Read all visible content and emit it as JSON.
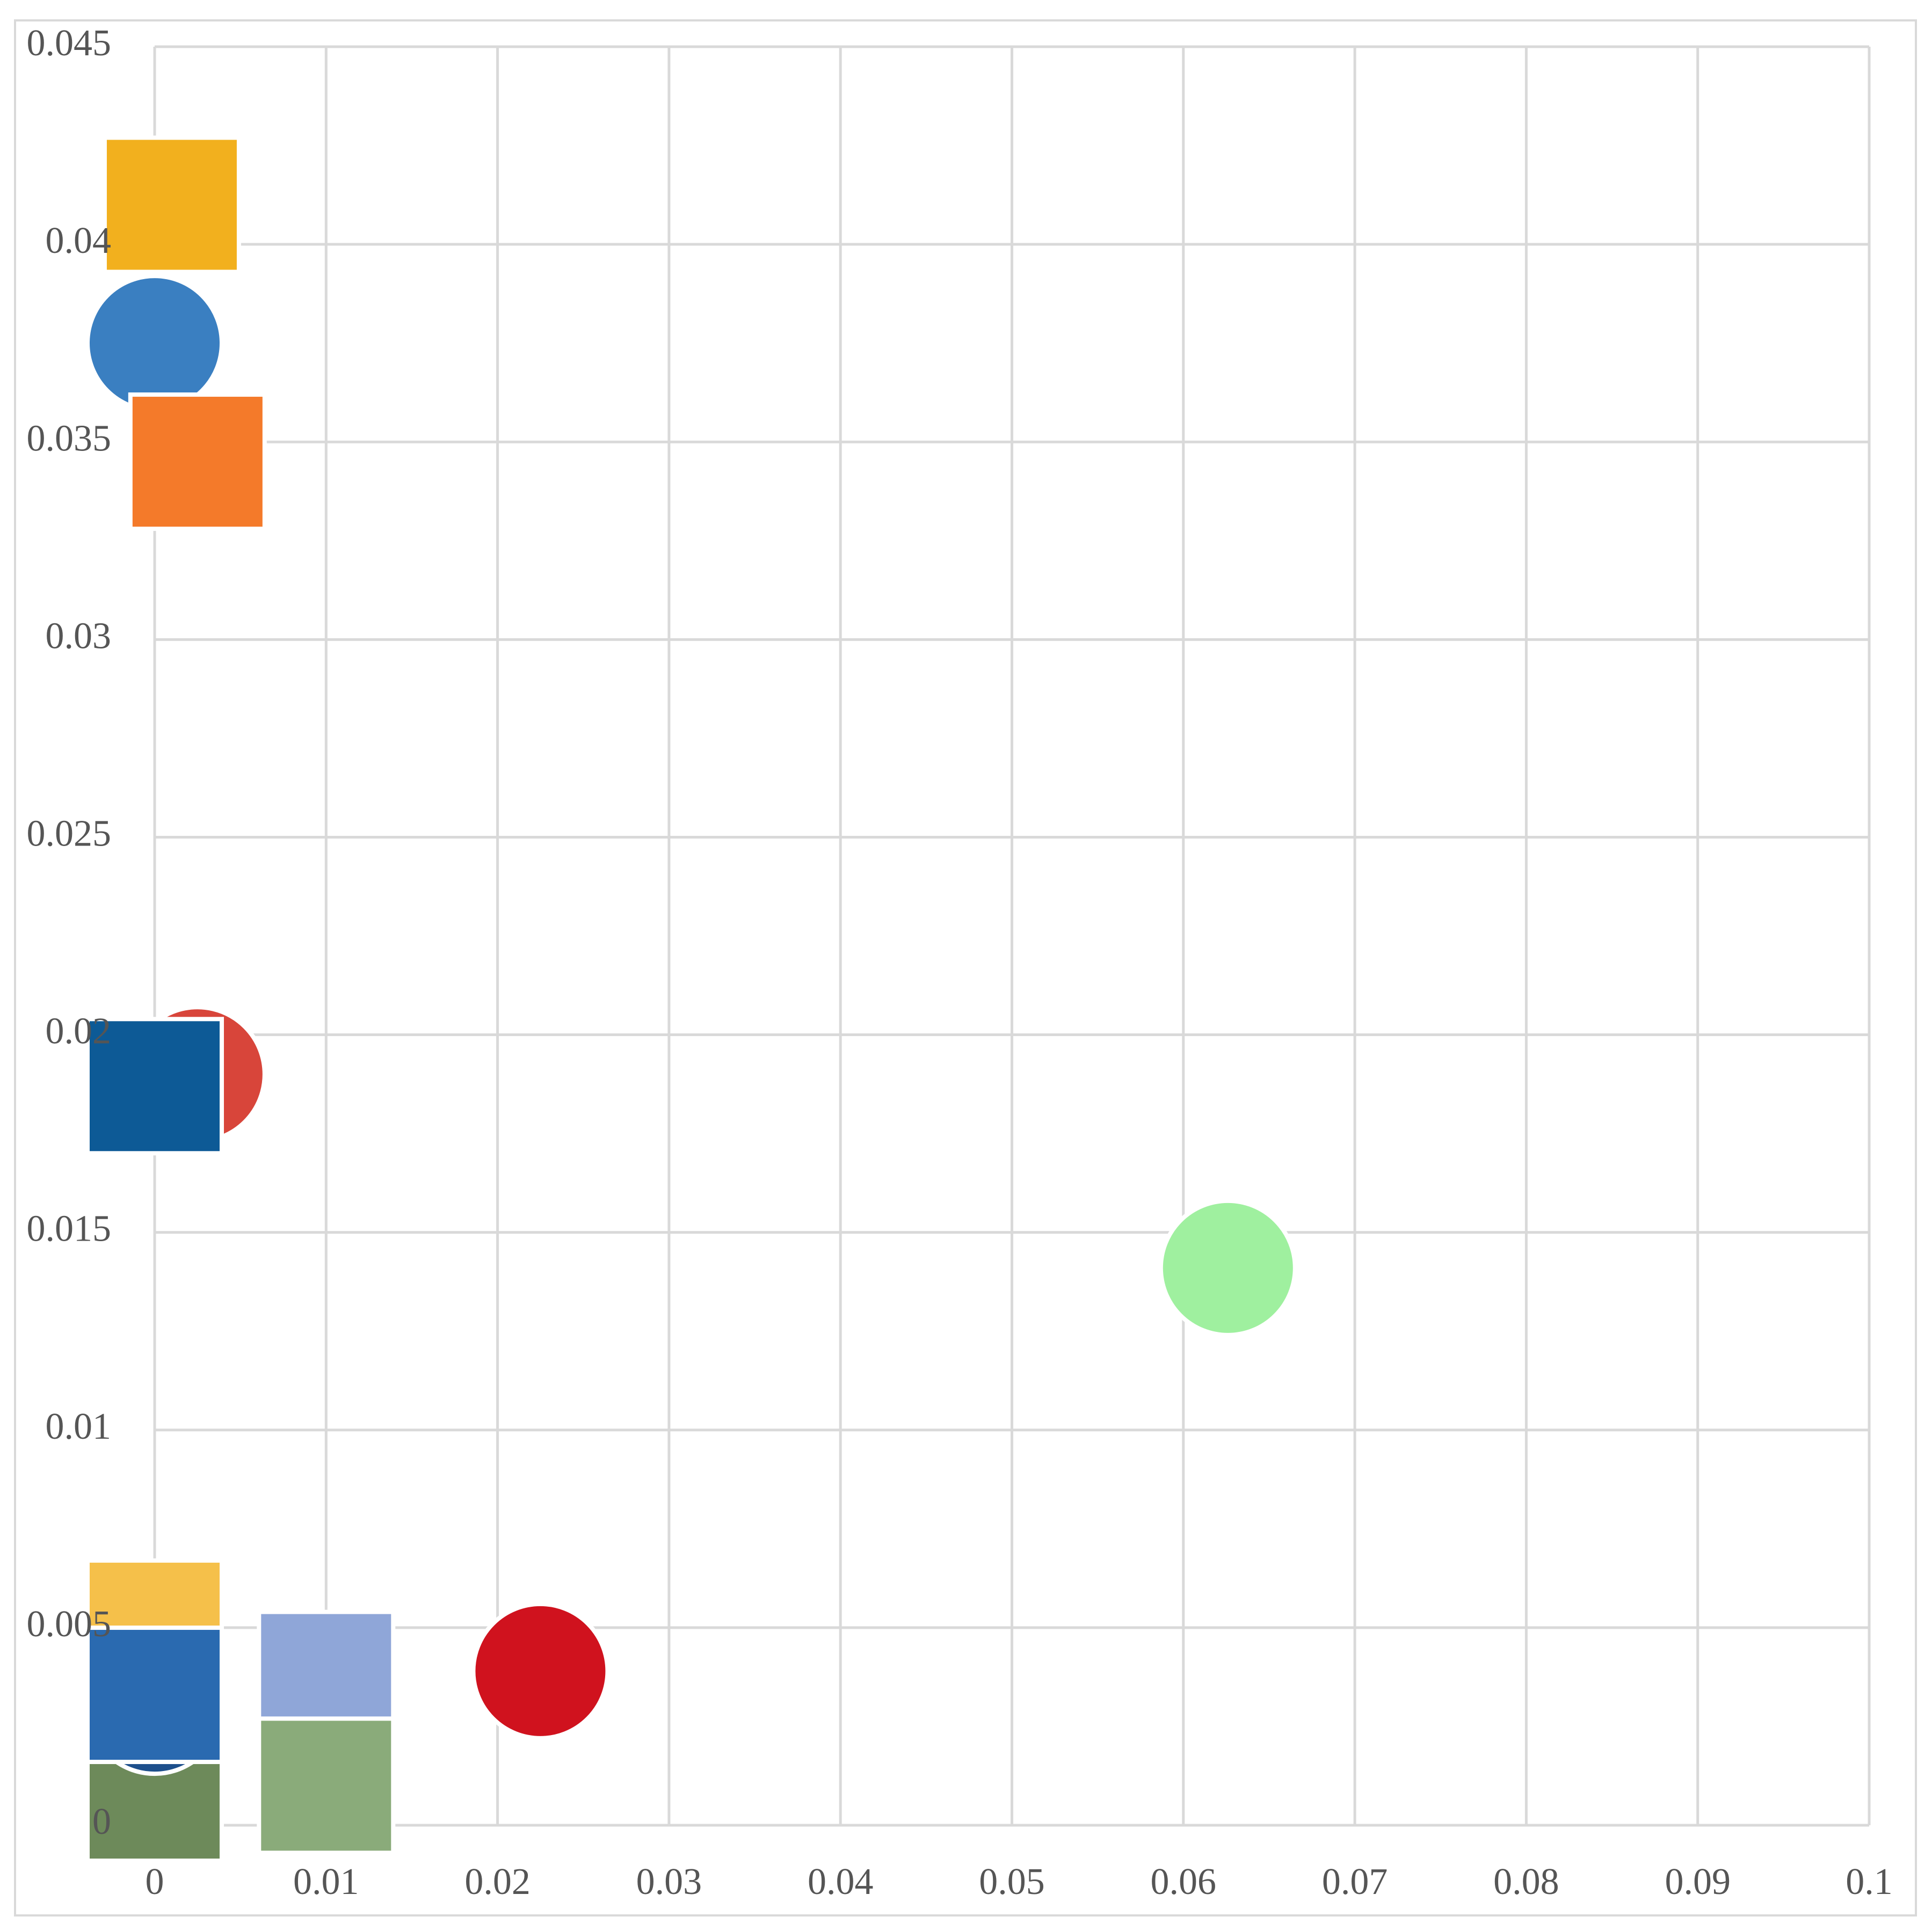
{
  "chart_data": {
    "type": "scatter",
    "x": [
      0.001,
      0,
      0.0025,
      0.0025,
      0,
      0.0626,
      0.0225,
      0.01,
      0.01,
      0,
      0,
      0,
      0
    ],
    "values": [
      0.041,
      0.0375,
      0.0345,
      0.019,
      0.0187,
      0.0141,
      0.0039,
      0.0037,
      0.001,
      0.005,
      0.0008,
      0.003,
      0.0033
    ],
    "marker_colors": [
      "#f2b01e",
      "#3a7fc1",
      "#f47a2a",
      "#d8453a",
      "#0d5a96",
      "#9ff09f",
      "#d0121e",
      "#8fa6d8",
      "#8aab7a",
      "#f5c04a",
      "#6d8a5a",
      "#1d4f8c",
      "#2a6ab0"
    ],
    "marker_shapes": [
      "square",
      "circle",
      "square",
      "circle",
      "square",
      "circle",
      "circle",
      "square",
      "square",
      "square",
      "square",
      "circle",
      "square"
    ],
    "xlim": [
      0,
      0.1
    ],
    "xticks": [
      0,
      0.01,
      0.02,
      0.03,
      0.04,
      0.05,
      0.06,
      0.07,
      0.08,
      0.09,
      0.1
    ],
    "ylim": [
      0,
      0.045
    ],
    "yticks": [
      0,
      0.005,
      0.01,
      0.015,
      0.02,
      0.025,
      0.03,
      0.035,
      0.04,
      0.045
    ],
    "grid": true
  }
}
